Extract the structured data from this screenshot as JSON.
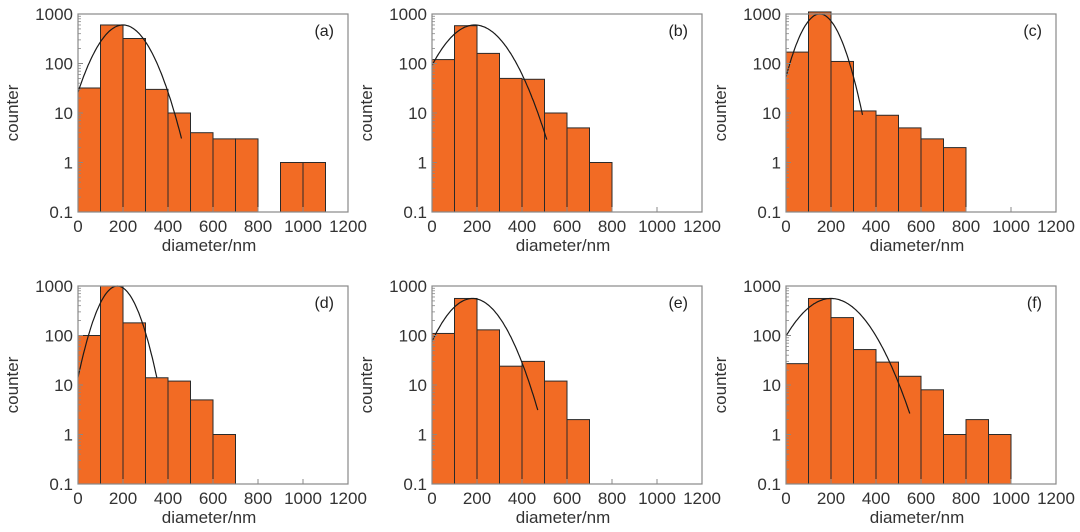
{
  "chart_data": [
    {
      "type": "bar",
      "panel_label": "(a)",
      "xlabel": "diameter/nm",
      "ylabel": "counter",
      "yscale": "log",
      "xlim": [
        0,
        1200
      ],
      "ylim": [
        0.1,
        1000
      ],
      "xticks": [
        "0",
        "200",
        "400",
        "600",
        "800",
        "1000",
        "1200"
      ],
      "yticks": [
        "0.1",
        "1",
        "10",
        "100",
        "1000"
      ],
      "bin_width": 100,
      "bin_starts": [
        0,
        100,
        200,
        300,
        400,
        500,
        600,
        700,
        800,
        900,
        1000
      ],
      "values": [
        32,
        600,
        320,
        30,
        10,
        4,
        3,
        3,
        0,
        1,
        1
      ],
      "fit": {
        "type": "lognormal-like gaussian",
        "peak": 600,
        "center": 200,
        "sigma": 80,
        "x_range": [
          0,
          460
        ]
      }
    },
    {
      "type": "bar",
      "panel_label": "(b)",
      "xlabel": "diameter/nm",
      "ylabel": "counter",
      "yscale": "log",
      "xlim": [
        0,
        1200
      ],
      "ylim": [
        0.1,
        1000
      ],
      "xticks": [
        "0",
        "200",
        "400",
        "600",
        "800",
        "1000",
        "1200"
      ],
      "yticks": [
        "0.1",
        "1",
        "10",
        "100",
        "1000"
      ],
      "bin_width": 100,
      "bin_starts": [
        0,
        100,
        200,
        300,
        400,
        500,
        600,
        700
      ],
      "values": [
        120,
        580,
        160,
        50,
        48,
        10,
        5,
        1
      ],
      "fit": {
        "type": "gaussian",
        "peak": 600,
        "center": 190,
        "sigma": 98,
        "x_range": [
          0,
          510
        ]
      }
    },
    {
      "type": "bar",
      "panel_label": "(c)",
      "xlabel": "diameter/nm",
      "ylabel": "counter",
      "yscale": "log",
      "xlim": [
        0,
        1200
      ],
      "ylim": [
        0.1,
        1000
      ],
      "xticks": [
        "0",
        "200",
        "400",
        "600",
        "800",
        "1000",
        "1200"
      ],
      "yticks": [
        "0.1",
        "1",
        "10",
        "100",
        "1000"
      ],
      "bin_width": 100,
      "bin_starts": [
        0,
        100,
        200,
        300,
        400,
        500,
        600,
        700
      ],
      "values": [
        170,
        1100,
        110,
        11,
        9,
        5,
        3,
        2
      ],
      "fit": {
        "type": "gaussian",
        "peak": 1000,
        "center": 150,
        "sigma": 62,
        "x_range": [
          0,
          340
        ]
      }
    },
    {
      "type": "bar",
      "panel_label": "(d)",
      "xlabel": "diameter/nm",
      "ylabel": "counter",
      "yscale": "log",
      "xlim": [
        0,
        1200
      ],
      "ylim": [
        0.1,
        1000
      ],
      "xticks": [
        "0",
        "200",
        "400",
        "600",
        "800",
        "1000",
        "1200"
      ],
      "yticks": [
        "0.1",
        "1",
        "10",
        "100",
        "1000"
      ],
      "bin_width": 100,
      "bin_starts": [
        0,
        100,
        200,
        300,
        400,
        500,
        600
      ],
      "values": [
        100,
        1000,
        180,
        14,
        12,
        5,
        1
      ],
      "fit": {
        "type": "gaussian",
        "peak": 1000,
        "center": 175,
        "sigma": 60,
        "x_range": [
          0,
          350
        ]
      }
    },
    {
      "type": "bar",
      "panel_label": "(e)",
      "xlabel": "diameter/nm",
      "ylabel": "counter",
      "yscale": "log",
      "xlim": [
        0,
        1200
      ],
      "ylim": [
        0.1,
        1000
      ],
      "xticks": [
        "0",
        "200",
        "400",
        "600",
        "800",
        "1000",
        "1200"
      ],
      "yticks": [
        "0.1",
        "1",
        "10",
        "100",
        "1000"
      ],
      "bin_width": 100,
      "bin_starts": [
        0,
        100,
        200,
        300,
        400,
        500,
        600
      ],
      "values": [
        110,
        560,
        130,
        24,
        30,
        12,
        2
      ],
      "fit": {
        "type": "gaussian",
        "peak": 560,
        "center": 180,
        "sigma": 90,
        "x_range": [
          0,
          470
        ]
      }
    },
    {
      "type": "bar",
      "panel_label": "(f)",
      "xlabel": "diameter/nm",
      "ylabel": "counter",
      "yscale": "log",
      "xlim": [
        0,
        1200
      ],
      "ylim": [
        0.1,
        1000
      ],
      "xticks": [
        "0",
        "200",
        "400",
        "600",
        "800",
        "1000",
        "1200"
      ],
      "yticks": [
        "0.1",
        "1",
        "10",
        "100",
        "1000"
      ],
      "bin_width": 100,
      "bin_starts": [
        0,
        100,
        200,
        300,
        400,
        500,
        600,
        700,
        800,
        900
      ],
      "values": [
        27,
        560,
        230,
        52,
        29,
        15,
        8,
        1,
        2,
        1
      ],
      "fit": {
        "type": "gaussian",
        "peak": 560,
        "center": 200,
        "sigma": 107,
        "x_range": [
          0,
          550
        ]
      }
    }
  ],
  "colors": {
    "bar": "#f26b24",
    "edge": "#2a2a2a",
    "axis": "#888888",
    "fit": "#1a1a1a"
  }
}
